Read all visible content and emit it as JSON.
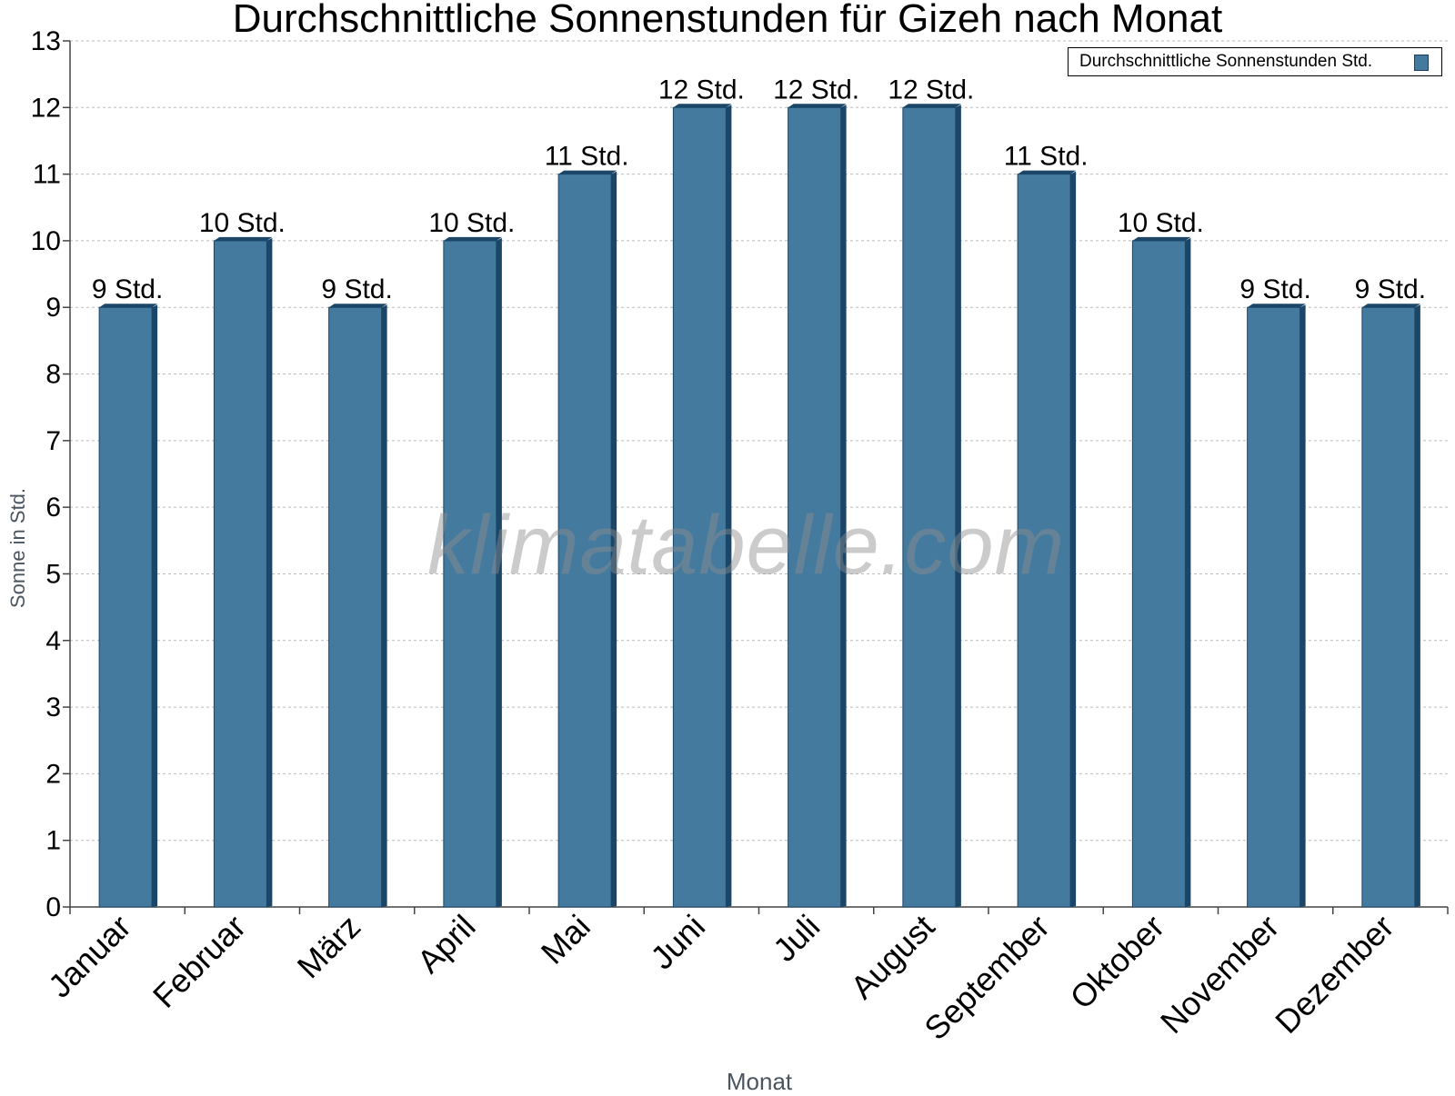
{
  "chart_data": {
    "type": "bar",
    "title": "Durchschnittliche Sonnenstunden für Gizeh nach Monat",
    "xlabel": "Monat",
    "ylabel": "Sonne in Std.",
    "ylim": [
      0,
      13
    ],
    "yticks": [
      0,
      1,
      2,
      3,
      4,
      5,
      6,
      7,
      8,
      9,
      10,
      11,
      12,
      13
    ],
    "grid": true,
    "legend_position": "top-right",
    "categories": [
      "Januar",
      "Februar",
      "März",
      "April",
      "Mai",
      "Juni",
      "Juli",
      "August",
      "September",
      "Oktober",
      "November",
      "Dezember"
    ],
    "series": [
      {
        "name": "Durchschnittliche Sonnenstunden Std.",
        "values": [
          9,
          10,
          9,
          10,
          11,
          12,
          12,
          12,
          11,
          10,
          9,
          9
        ],
        "data_labels": [
          "9 Std.",
          "10 Std.",
          "9 Std.",
          "10 Std.",
          "11 Std.",
          "12 Std.",
          "12 Std.",
          "12 Std.",
          "11 Std.",
          "10 Std.",
          "9 Std.",
          "9 Std."
        ]
      }
    ],
    "colors": {
      "bar": "#457a9f",
      "bar_dark": "#1b4668",
      "grid": "#bbbbbb"
    }
  },
  "watermark": "klimatabelle.com"
}
